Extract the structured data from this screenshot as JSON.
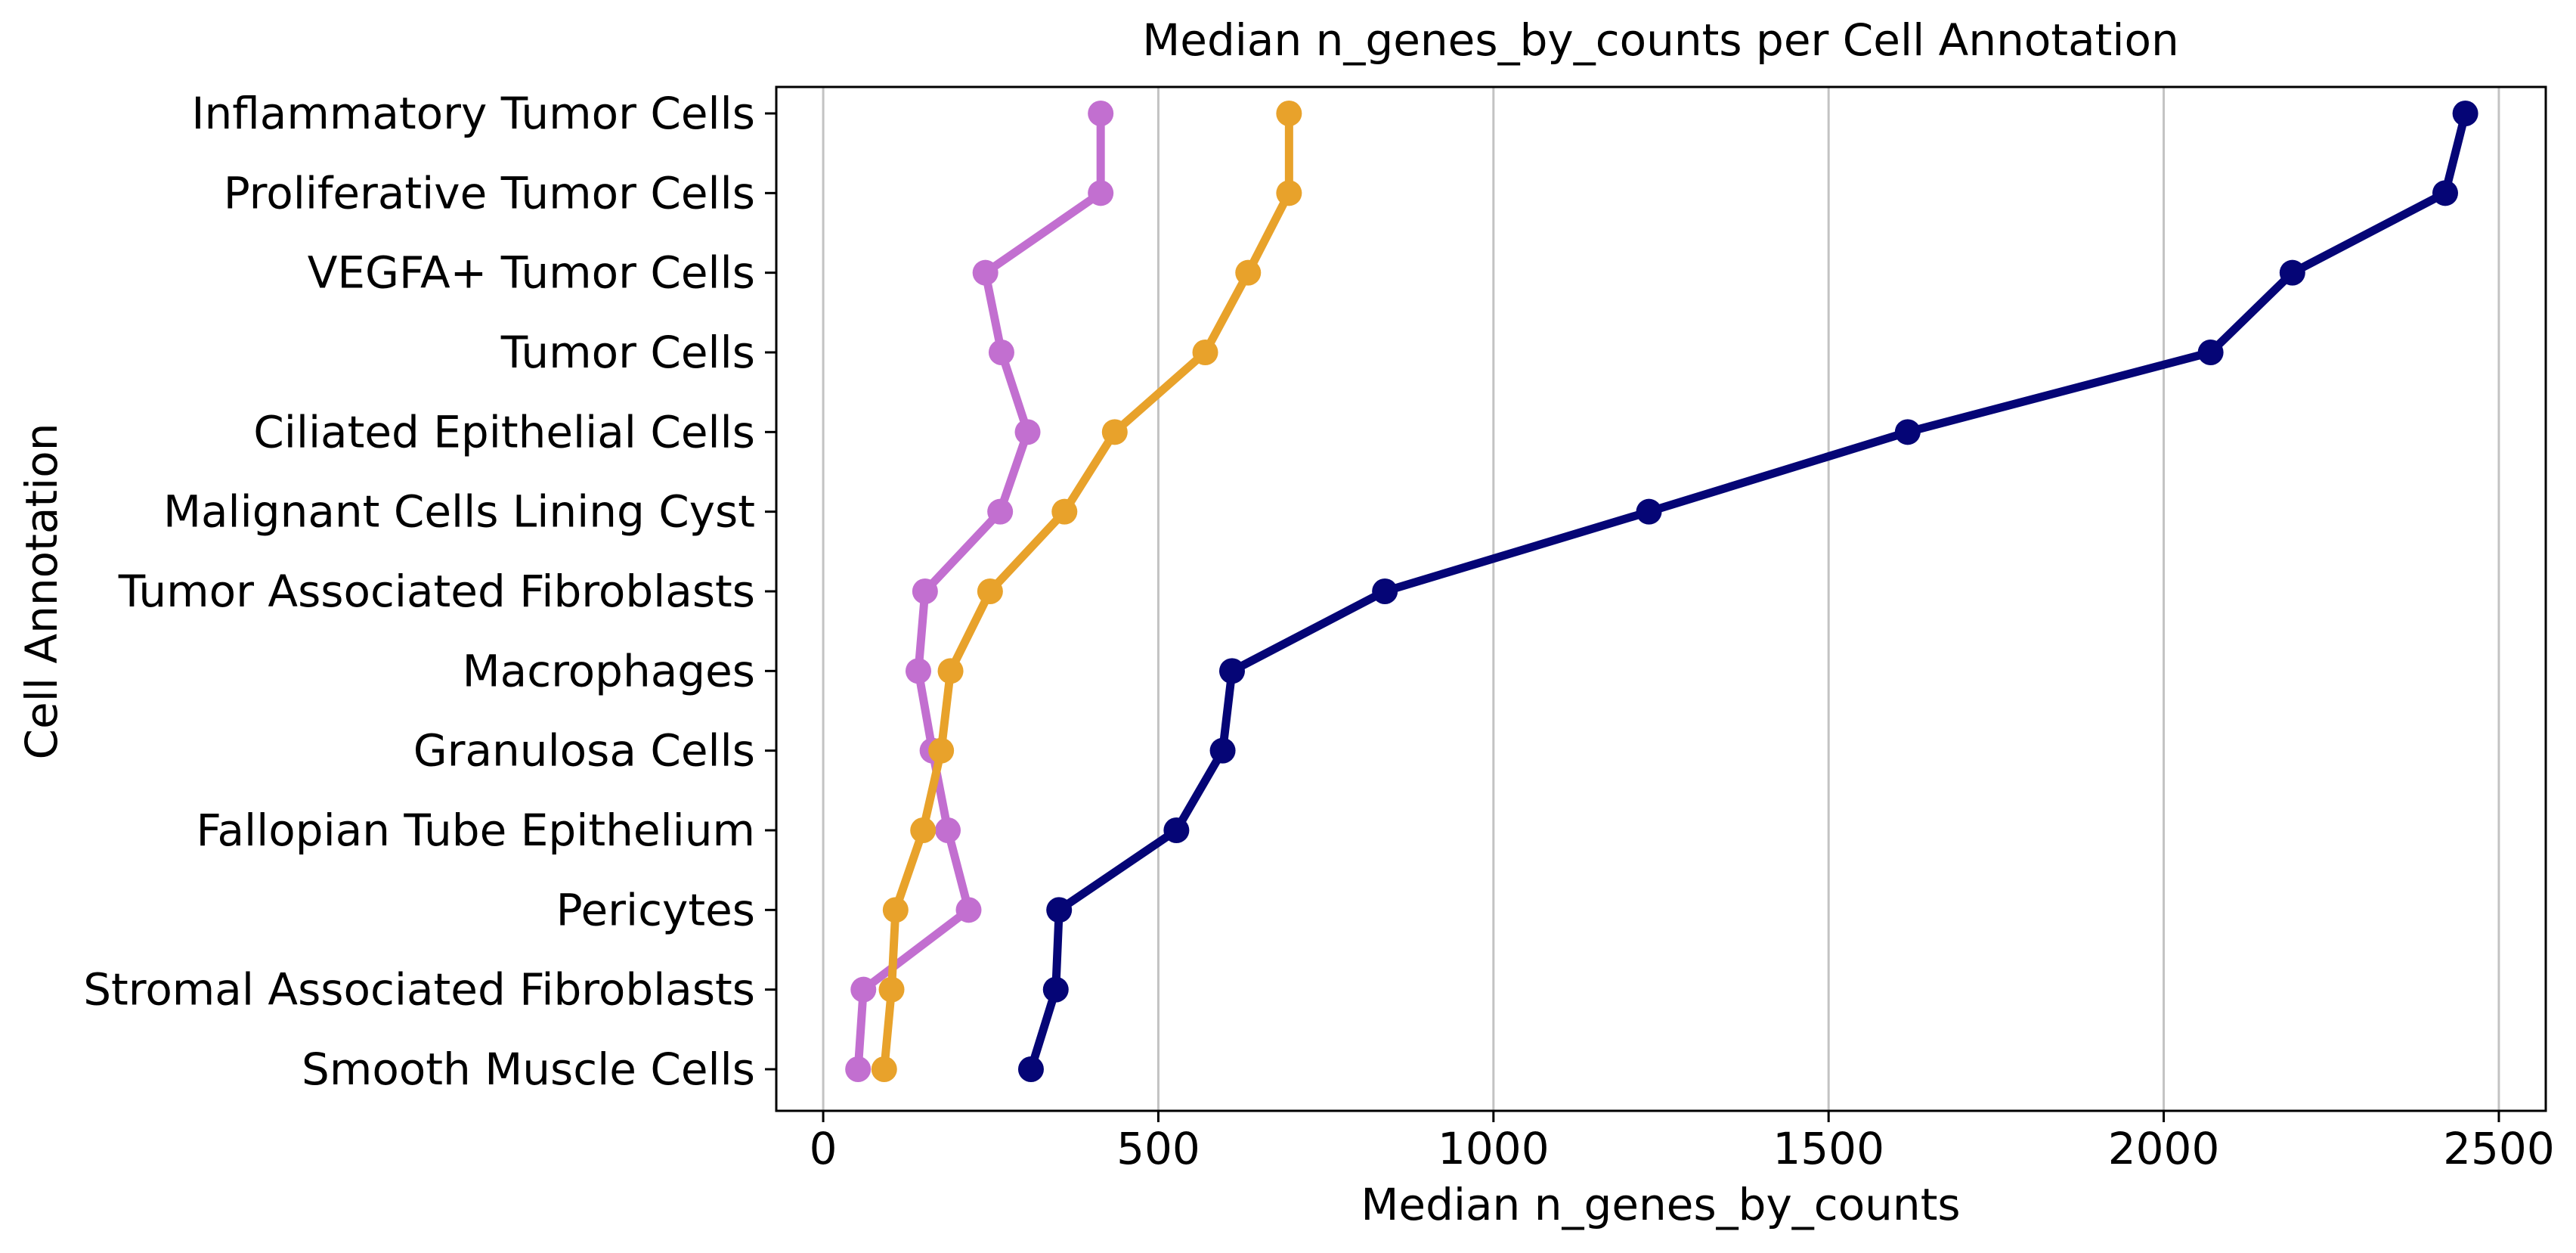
{
  "chart_data": {
    "type": "line",
    "title": "Median n_genes_by_counts per Cell Annotation",
    "xlabel": "Median n_genes_by_counts",
    "ylabel": "Cell Annotation",
    "xlim": [
      -70,
      2570
    ],
    "xticks": [
      0,
      500,
      1000,
      1500,
      2000,
      2500
    ],
    "grid": "x",
    "legend": "none",
    "categories": [
      "Inflammatory Tumor Cells",
      "Proliferative Tumor Cells",
      "VEGFA+ Tumor Cells",
      "Tumor Cells",
      "Ciliated Epithelial Cells",
      "Malignant Cells Lining Cyst",
      "Tumor Associated Fibroblasts",
      "Macrophages",
      "Granulosa Cells",
      "Fallopian Tube Epithelium",
      "Pericytes",
      "Stromal Associated Fibroblasts",
      "Smooth Muscle Cells"
    ],
    "series": [
      {
        "color": "#C26FD0",
        "values": [
          414,
          414,
          242,
          266,
          305,
          264,
          152,
          142,
          163,
          186,
          217,
          60,
          52
        ]
      },
      {
        "color": "#E8A22B",
        "values": [
          695,
          695,
          634,
          570,
          435,
          360,
          249,
          190,
          176,
          149,
          108,
          102,
          91
        ]
      },
      {
        "color": "#050576",
        "values": [
          2450,
          2420,
          2192,
          2070,
          1618,
          1232,
          838,
          610,
          596,
          527,
          352,
          347,
          310
        ]
      }
    ]
  }
}
